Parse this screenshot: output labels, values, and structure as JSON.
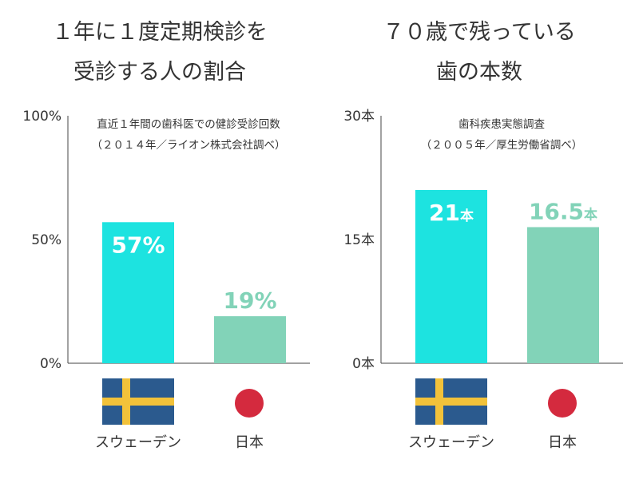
{
  "chart_data": [
    {
      "type": "bar",
      "title": [
        "１年に１度定期検診を",
        "受診する人の割合"
      ],
      "subtitle": [
        "直近１年間の歯科医での健診受診回数",
        "（２０１４年／ライオン株式会社調べ）"
      ],
      "categories": [
        "スウェーデン",
        "日本"
      ],
      "values": [
        57,
        19
      ],
      "value_labels": [
        "57%",
        "19%"
      ],
      "yticks": [
        "0%",
        "50%",
        "100%"
      ],
      "ylim": [
        0,
        100
      ],
      "bar_colors": [
        "#1de3e0",
        "#82d3b8"
      ],
      "label_colors": [
        "#ffffff",
        "#82d3b8"
      ]
    },
    {
      "type": "bar",
      "title": [
        "７０歳で残っている",
        "歯の本数"
      ],
      "subtitle": [
        "歯科疾患実態調査",
        "（２００５年／厚生労働省調べ）"
      ],
      "categories": [
        "スウェーデン",
        "日本"
      ],
      "values": [
        21,
        16.5
      ],
      "value_labels": [
        "21",
        "16.5"
      ],
      "value_unit": "本",
      "yticks": [
        "0本",
        "15本",
        "30本"
      ],
      "ylim": [
        0,
        30
      ],
      "bar_colors": [
        "#1de3e0",
        "#82d3b8"
      ],
      "label_colors": [
        "#ffffff",
        "#82d3b8"
      ]
    }
  ],
  "flags": {
    "sweden": {
      "name": "sweden-flag",
      "blue": "#2b5a8e",
      "yellow": "#f2c23a"
    },
    "japan": {
      "name": "japan-flag",
      "red": "#d42a3e"
    }
  },
  "colors": {
    "axis": "#444444",
    "text": "#333333",
    "background": "#ffffff"
  }
}
